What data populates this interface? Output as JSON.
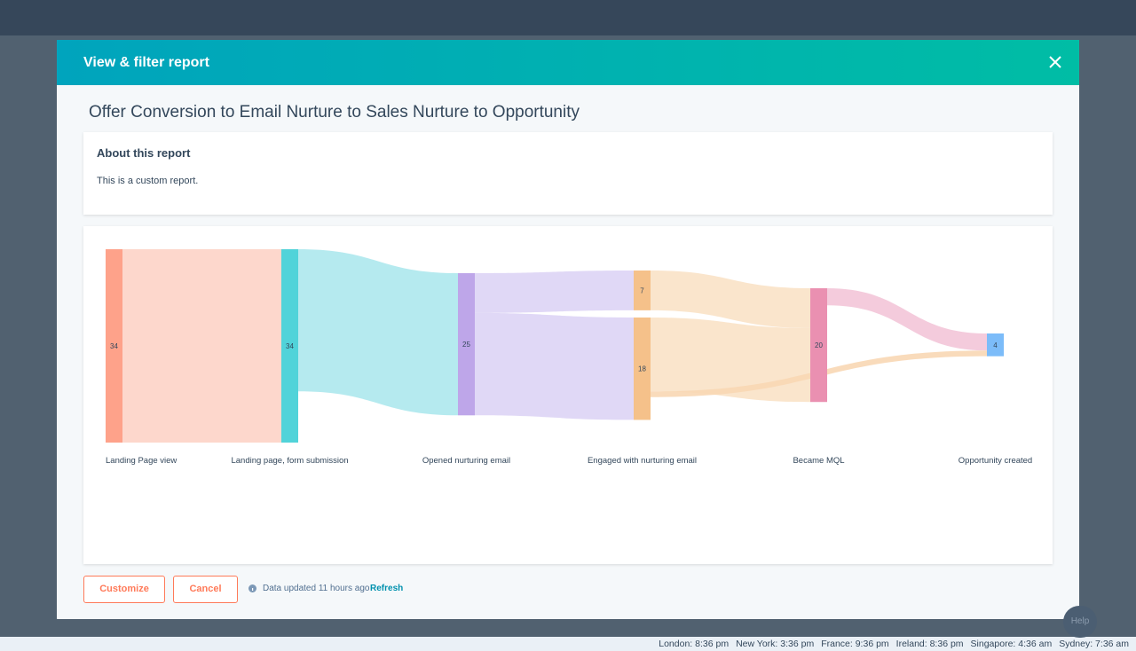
{
  "modal": {
    "title": "View & filter report",
    "report_title": "Offer Conversion to Email Nurture to Sales Nurture to Opportunity",
    "about_heading": "About this report",
    "about_text": "This is a custom report."
  },
  "chart_data": {
    "type": "sankey",
    "columns": [
      "Landing Page view",
      "Landing page, form submission",
      "Opened nurturing email",
      "Engaged with nurturing email",
      "Became MQL",
      "Opportunity created"
    ],
    "nodes": [
      {
        "column": 0,
        "value": 34,
        "color": "#fea28a"
      },
      {
        "column": 1,
        "value": 34,
        "color": "#51d3d9"
      },
      {
        "column": 2,
        "value": 25,
        "color": "#bea6e9"
      },
      {
        "column": 3,
        "value": 7,
        "color": "#f5c18a"
      },
      {
        "column": 3,
        "value": 18,
        "color": "#f5c18a"
      },
      {
        "column": 4,
        "value": 20,
        "color": "#ea90b1"
      },
      {
        "column": 5,
        "value": 4,
        "color": "#7cbcf9"
      }
    ],
    "links": [
      {
        "source": 0,
        "target": 1,
        "value": 34,
        "color": "#fdd3c7"
      },
      {
        "source": 1,
        "target": 2,
        "value": 25,
        "color": "#ade8ed"
      },
      {
        "source": 2,
        "target": 3,
        "value": 7,
        "color": "#ddd4f5"
      },
      {
        "source": 2,
        "target": 4,
        "value": 18,
        "color": "#ddd4f5"
      },
      {
        "source": 3,
        "target": 5,
        "value": 7,
        "color": "#fae2c7"
      },
      {
        "source": 4,
        "target": 5,
        "value": 13,
        "color": "#fae2c7"
      },
      {
        "source": 5,
        "target": 6,
        "value": 3,
        "color": "#f3c5d8"
      },
      {
        "source": 4,
        "target": 6,
        "value": 1,
        "color": "#f8d7b4"
      }
    ]
  },
  "actions": {
    "customize": "Customize",
    "cancel": "Cancel",
    "status": "Data updated 11 hours ago",
    "refresh": "Refresh"
  },
  "clocks": [
    "London: 8:36 pm",
    "New York: 3:36 pm",
    "France: 9:36 pm",
    "Ireland: 8:36 pm",
    "Singapore: 4:36 am",
    "Sydney: 7:36 am"
  ],
  "help": "Help"
}
